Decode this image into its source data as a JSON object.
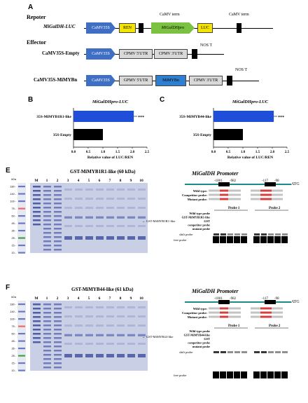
{
  "panelA": {
    "letter": "A",
    "reporter_heading": "Repoter",
    "effector_heading": "Effector",
    "reporter_construct": "MiGalDH-LUC",
    "camv35s": "CaMV35S",
    "camv_term_1": "CaMV term",
    "camv_term_2": "CaMV term",
    "ren": "REN",
    "migaldhpro": "MiGalDHpro",
    "luc": "LUC",
    "empty_construct": "CaMV35S-Empty",
    "mimyb_construct": "CaMV35S-MiMYBn",
    "nos_t_1": "NOS T",
    "nos_t_2": "NOS T",
    "cpmv5": "CPMV 5'UTR",
    "cpmv3": "CPMV 3'UTR",
    "gpmv5": "GPMV 5'UTR",
    "mimybn": "MiMYBn",
    "colors": {
      "promoter": "#3f6fc4",
      "ren": "#f5e400",
      "migaldh": "#7cc242",
      "luc": "#f5e400",
      "utr": "#d9d9d9",
      "mimyb": "#2f7fd0"
    }
  },
  "panelB": {
    "letter": "B",
    "title": "MiGalDHpro-LUC",
    "xlabel": "Relative value of LUC/REN",
    "significance": "***"
  },
  "panelC": {
    "letter": "C",
    "title": "MiGalDHpro-LUC",
    "xlabel": "Relative value of LUC/REN",
    "significance": "***"
  },
  "chart_data": [
    {
      "type": "bar",
      "orientation": "horizontal",
      "title": "MiGalDHpro-LUC",
      "xlabel": "Relative value of LUC/REN",
      "categories": [
        "35S-MiMYB1R1-like",
        "35S-Empty"
      ],
      "values": [
        2.05,
        1.0
      ],
      "colors": [
        "#1f4fd8",
        "#000000"
      ],
      "xlim": [
        0,
        2.5
      ],
      "xticks": [
        "0.0",
        "0.5",
        "1.0",
        "1.5",
        "2.0",
        "2.5"
      ]
    },
    {
      "type": "bar",
      "orientation": "horizontal",
      "title": "MiGalDHpro-LUC",
      "xlabel": "Relative value of LUC/REN",
      "categories": [
        "35S-MiMYB44-like",
        "35S-Empty"
      ],
      "values": [
        2.05,
        1.0
      ],
      "colors": [
        "#1f4fd8",
        "#000000"
      ],
      "xlim": [
        0,
        2.5
      ],
      "xticks": [
        "0.0",
        "0.5",
        "1.0",
        "1.5",
        "2.0",
        "2.5"
      ]
    }
  ],
  "panelE": {
    "letter": "E",
    "gel_title": "GST-MiMYB1R1-like (60 kDa)",
    "lanes": [
      "M",
      "1",
      "2",
      "3",
      "4",
      "5",
      "6",
      "7",
      "8",
      "9",
      "10"
    ],
    "ladder": [
      "kDa",
      "180 -",
      "140 -",
      "100 -",
      "75 -",
      "60 -",
      "45 -",
      "35 -",
      "25 -",
      "15 -",
      "10 -"
    ],
    "arrow_label": "GST-MiMYB1R1-like",
    "promoter_title": "MiGalDH Promoter",
    "pos1": "-1001",
    "pos2": "-982",
    "pos3": "-117",
    "pos4": "-98",
    "atg": "ATG",
    "seq_labels": [
      "Wild type:",
      "Competitor probe:",
      "Mutant probe:"
    ],
    "probe1": "Probe 1",
    "probe2": "Probe 2",
    "rows": [
      "Wild type probe",
      "GST-MiMYB1R1-like",
      "GST",
      "competitor probe",
      "mutant probe"
    ],
    "shift": "shift probe",
    "free": "free probe"
  },
  "panelF": {
    "letter": "F",
    "gel_title": "GST-MiMYB44-like (61 kDa)",
    "lanes": [
      "M",
      "1",
      "2",
      "3",
      "4",
      "5",
      "6",
      "7",
      "8",
      "9",
      "10"
    ],
    "ladder": [
      "kDa",
      "180 -",
      "140 -",
      "100 -",
      "75 -",
      "60 -",
      "45 -",
      "35 -",
      "25 -",
      "15 -",
      "10 -"
    ],
    "arrow_label": "GST-MiMYB44-like",
    "promoter_title": "MiGalDH Promoter",
    "pos1": "-1001",
    "pos2": "-982",
    "pos3": "-117",
    "pos4": "-98",
    "atg": "ATG",
    "seq_labels": [
      "Wild type:",
      "Competitor probe:",
      "Mutant probe:"
    ],
    "probe1": "Probe 1",
    "probe2": "Probe 2",
    "rows": [
      "Wild type probe",
      "GST-MiMYB44-like",
      "GST",
      "competitor probe",
      "mutant probe"
    ],
    "shift": "shift probe",
    "free": "free probe"
  }
}
